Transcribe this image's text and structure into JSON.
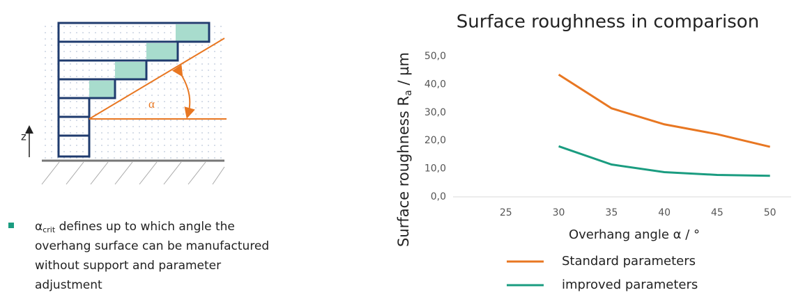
{
  "diagram": {
    "z_label": "z",
    "alpha_label": "α"
  },
  "bullet": {
    "symbol": "α",
    "subscript": "crit",
    "lines": [
      " defines up to which angle the",
      "overhang surface can be manufactured",
      "without support and parameter",
      "adjustment"
    ]
  },
  "chart_data": {
    "type": "line",
    "title": "Surface roughness in comparison",
    "ylabel": [
      "Surface roughness R",
      "a",
      " / µm"
    ],
    "xlabel": "Overhang angle α / °",
    "x": [
      30,
      35,
      40,
      45,
      50
    ],
    "series": [
      {
        "name": "Standard parameters",
        "color": "#e87722",
        "values": [
          43.5,
          31.5,
          25.8,
          22.3,
          17.8
        ]
      },
      {
        "name": "improved parameters",
        "color": "#1a9c80",
        "values": [
          18,
          11.5,
          8.8,
          7.8,
          7.5
        ]
      }
    ],
    "xlim": [
      20,
      52
    ],
    "xticks": [
      25,
      30,
      35,
      40,
      45,
      50
    ],
    "ylim": [
      0,
      50
    ],
    "yticks": [
      {
        "value": 0,
        "label": "0,0"
      },
      {
        "value": 10,
        "label": "10,0"
      },
      {
        "value": 20,
        "label": "20,0"
      },
      {
        "value": 30,
        "label": "30,0"
      },
      {
        "value": 40,
        "label": "40,0"
      },
      {
        "value": 50,
        "label": "50,0"
      }
    ],
    "grid": false
  }
}
